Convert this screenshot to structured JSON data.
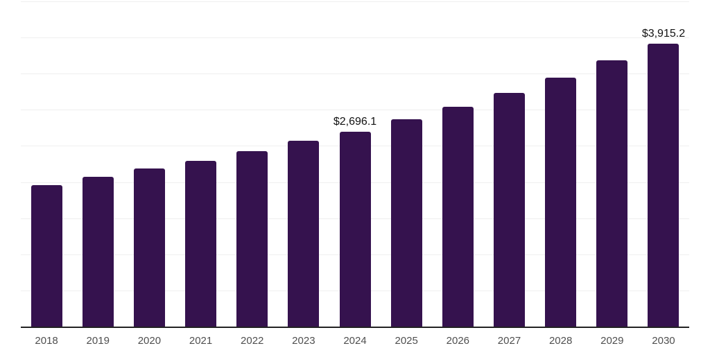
{
  "chart_data": {
    "type": "bar",
    "title": "",
    "xlabel": "",
    "ylabel": "",
    "categories": [
      "2018",
      "2019",
      "2020",
      "2021",
      "2022",
      "2023",
      "2024",
      "2025",
      "2026",
      "2027",
      "2028",
      "2029",
      "2030"
    ],
    "values": [
      1960,
      2075,
      2190,
      2290,
      2430,
      2570,
      2696.1,
      2870,
      3045,
      3235,
      3445,
      3680,
      3915.2
    ],
    "data_labels": [
      "",
      "",
      "",
      "",
      "",
      "",
      "$2,696.1",
      "",
      "",
      "",
      "",
      "",
      "$3,915.2"
    ],
    "ylim": [
      0,
      4500
    ],
    "ytick_interval": 500,
    "grid": "horizontal",
    "legend": "none",
    "colors": {
      "bar": "#35124e",
      "gridline": "#efefef",
      "axis_line": "#222222",
      "tick_label": "#4f4f4f",
      "data_label": "#111111",
      "background": "#ffffff"
    }
  }
}
